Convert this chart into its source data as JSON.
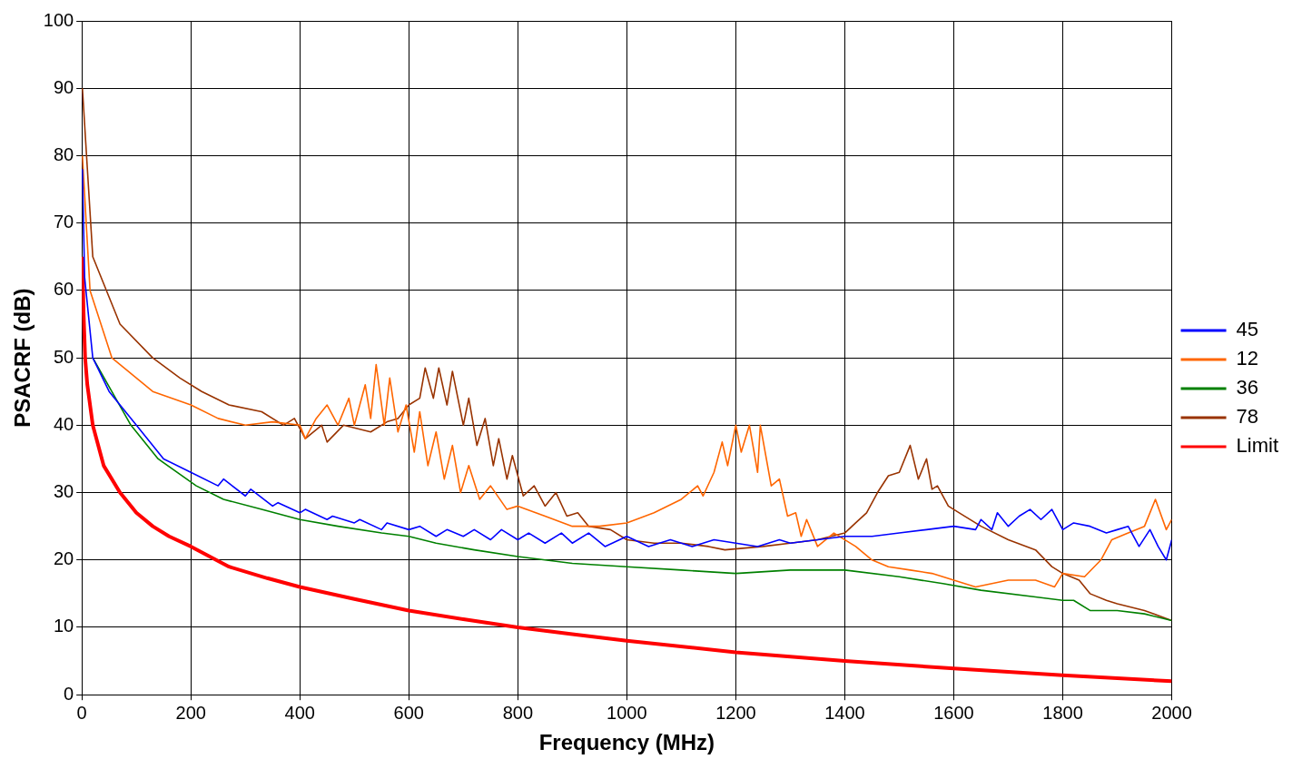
{
  "chart_data": {
    "type": "line",
    "xlabel": "Frequency (MHz)",
    "ylabel": "PSACRF (dB)",
    "xlim": [
      0,
      2000
    ],
    "xticks": [
      0,
      200,
      400,
      600,
      800,
      1000,
      1200,
      1400,
      1600,
      1800,
      2000
    ],
    "ylim": [
      0,
      100
    ],
    "yticks": [
      0,
      10,
      20,
      30,
      40,
      50,
      60,
      70,
      80,
      90,
      100
    ],
    "grid": true,
    "legend": "right",
    "marker": "none",
    "line_style": "solid",
    "series": [
      {
        "name": "45",
        "color": "#0000ff",
        "x": [
          1,
          5,
          20,
          50,
          100,
          150,
          200,
          250,
          260,
          300,
          310,
          350,
          360,
          400,
          410,
          450,
          460,
          500,
          510,
          550,
          560,
          600,
          620,
          650,
          670,
          700,
          720,
          750,
          770,
          800,
          820,
          850,
          880,
          900,
          930,
          960,
          1000,
          1040,
          1080,
          1120,
          1160,
          1200,
          1240,
          1280,
          1300,
          1350,
          1400,
          1450,
          1500,
          1550,
          1600,
          1640,
          1650,
          1670,
          1680,
          1700,
          1720,
          1740,
          1760,
          1780,
          1800,
          1820,
          1850,
          1880,
          1900,
          1920,
          1940,
          1960,
          1975,
          1990,
          2000
        ],
        "values": [
          78,
          62,
          50,
          45,
          40,
          35,
          33,
          31,
          32,
          29.5,
          30.5,
          28,
          28.5,
          27,
          27.5,
          26,
          26.5,
          25.5,
          26,
          24.5,
          25.5,
          24.5,
          25,
          23.5,
          24.5,
          23.5,
          24.5,
          23,
          24.5,
          23,
          24,
          22.5,
          24,
          22.5,
          24,
          22,
          23.5,
          22,
          23,
          22,
          23,
          22.5,
          22,
          23,
          22.5,
          23,
          23.5,
          23.5,
          24,
          24.5,
          25,
          24.5,
          26,
          24.5,
          27,
          25,
          26.5,
          27.5,
          26,
          27.5,
          24.5,
          25.5,
          25,
          24,
          24.5,
          25,
          22,
          24.5,
          22,
          20,
          23
        ]
      },
      {
        "name": "12",
        "color": "#ff6600",
        "x": [
          1,
          15,
          55,
          130,
          200,
          250,
          300,
          350,
          400,
          410,
          430,
          450,
          470,
          490,
          500,
          520,
          530,
          540,
          555,
          565,
          580,
          595,
          610,
          620,
          635,
          650,
          665,
          680,
          695,
          710,
          730,
          750,
          780,
          800,
          850,
          900,
          950,
          1000,
          1050,
          1100,
          1130,
          1140,
          1160,
          1175,
          1185,
          1200,
          1210,
          1225,
          1240,
          1245,
          1265,
          1280,
          1295,
          1310,
          1320,
          1330,
          1350,
          1380,
          1420,
          1450,
          1480,
          1520,
          1560,
          1600,
          1640,
          1700,
          1750,
          1785,
          1800,
          1840,
          1870,
          1890,
          1920,
          1950,
          1970,
          1990,
          2000
        ],
        "values": [
          80,
          60,
          50,
          45,
          43,
          41,
          40,
          40.5,
          40,
          38,
          41,
          43,
          40,
          44,
          40,
          46,
          41,
          49,
          40,
          47,
          39,
          43,
          36,
          42,
          34,
          39,
          32,
          37,
          30,
          34,
          29,
          31,
          27.5,
          28,
          26.5,
          25,
          25,
          25.5,
          27,
          29,
          31,
          29.5,
          33,
          37.5,
          34,
          40,
          36,
          40,
          33,
          40,
          31,
          32,
          26.5,
          27,
          23.5,
          26,
          22,
          24,
          22,
          20,
          19,
          18.5,
          18,
          17,
          16,
          17,
          17,
          16,
          18,
          17.5,
          20,
          23,
          24,
          25,
          29,
          24.5,
          26
        ]
      },
      {
        "name": "36",
        "color": "#008000",
        "x": [
          20,
          90,
          140,
          210,
          260,
          330,
          400,
          470,
          550,
          600,
          650,
          720,
          800,
          900,
          1000,
          1100,
          1200,
          1300,
          1400,
          1500,
          1580,
          1650,
          1750,
          1800,
          1820,
          1850,
          1900,
          1950,
          2000
        ],
        "values": [
          50,
          40,
          35,
          31,
          29,
          27.5,
          26,
          25,
          24,
          23.5,
          22.5,
          21.5,
          20.5,
          19.5,
          19,
          18.5,
          18,
          18.5,
          18.5,
          17.5,
          16.5,
          15.5,
          14.5,
          14,
          14,
          12.5,
          12.5,
          12,
          11
        ]
      },
      {
        "name": "78",
        "color": "#993300",
        "x": [
          1,
          20,
          70,
          130,
          180,
          220,
          270,
          330,
          370,
          390,
          410,
          440,
          450,
          480,
          530,
          560,
          580,
          600,
          620,
          630,
          645,
          655,
          670,
          680,
          700,
          710,
          725,
          740,
          755,
          765,
          780,
          790,
          810,
          830,
          850,
          870,
          890,
          910,
          930,
          970,
          1000,
          1050,
          1100,
          1150,
          1180,
          1250,
          1300,
          1350,
          1400,
          1420,
          1440,
          1460,
          1480,
          1500,
          1520,
          1535,
          1550,
          1560,
          1570,
          1590,
          1610,
          1650,
          1700,
          1750,
          1780,
          1800,
          1830,
          1850,
          1880,
          1900,
          1950,
          2000
        ],
        "values": [
          90,
          65,
          55,
          50,
          47,
          45,
          43,
          42,
          40,
          41,
          38,
          40,
          37.5,
          40,
          39,
          40.5,
          41,
          43,
          44,
          48.5,
          44,
          48.5,
          43,
          48,
          40,
          44,
          37,
          41,
          34,
          38,
          32,
          35.5,
          29.5,
          31,
          28,
          30,
          26.5,
          27,
          25,
          24.5,
          23,
          22.5,
          22.5,
          22,
          21.5,
          22,
          22.5,
          23,
          24,
          25.5,
          27,
          30,
          32.5,
          33,
          37,
          32,
          35,
          30.5,
          31,
          28,
          27,
          25,
          23,
          21.5,
          19,
          18,
          17,
          15,
          14,
          13.5,
          12.5,
          11
        ]
      },
      {
        "name": "Limit",
        "color": "#ff0000",
        "x": [
          1,
          3,
          6,
          10,
          20,
          40,
          70,
          100,
          130,
          160,
          200,
          270,
          340,
          400,
          500,
          600,
          700,
          800,
          900,
          1000,
          1200,
          1400,
          1600,
          1800,
          2000
        ],
        "values": [
          65,
          57,
          50,
          46,
          40,
          34,
          30,
          27,
          25,
          23.5,
          22,
          19,
          17.3,
          16,
          14.2,
          12.5,
          11.2,
          10,
          9,
          8,
          6.3,
          5,
          3.9,
          2.9,
          2
        ]
      }
    ]
  }
}
